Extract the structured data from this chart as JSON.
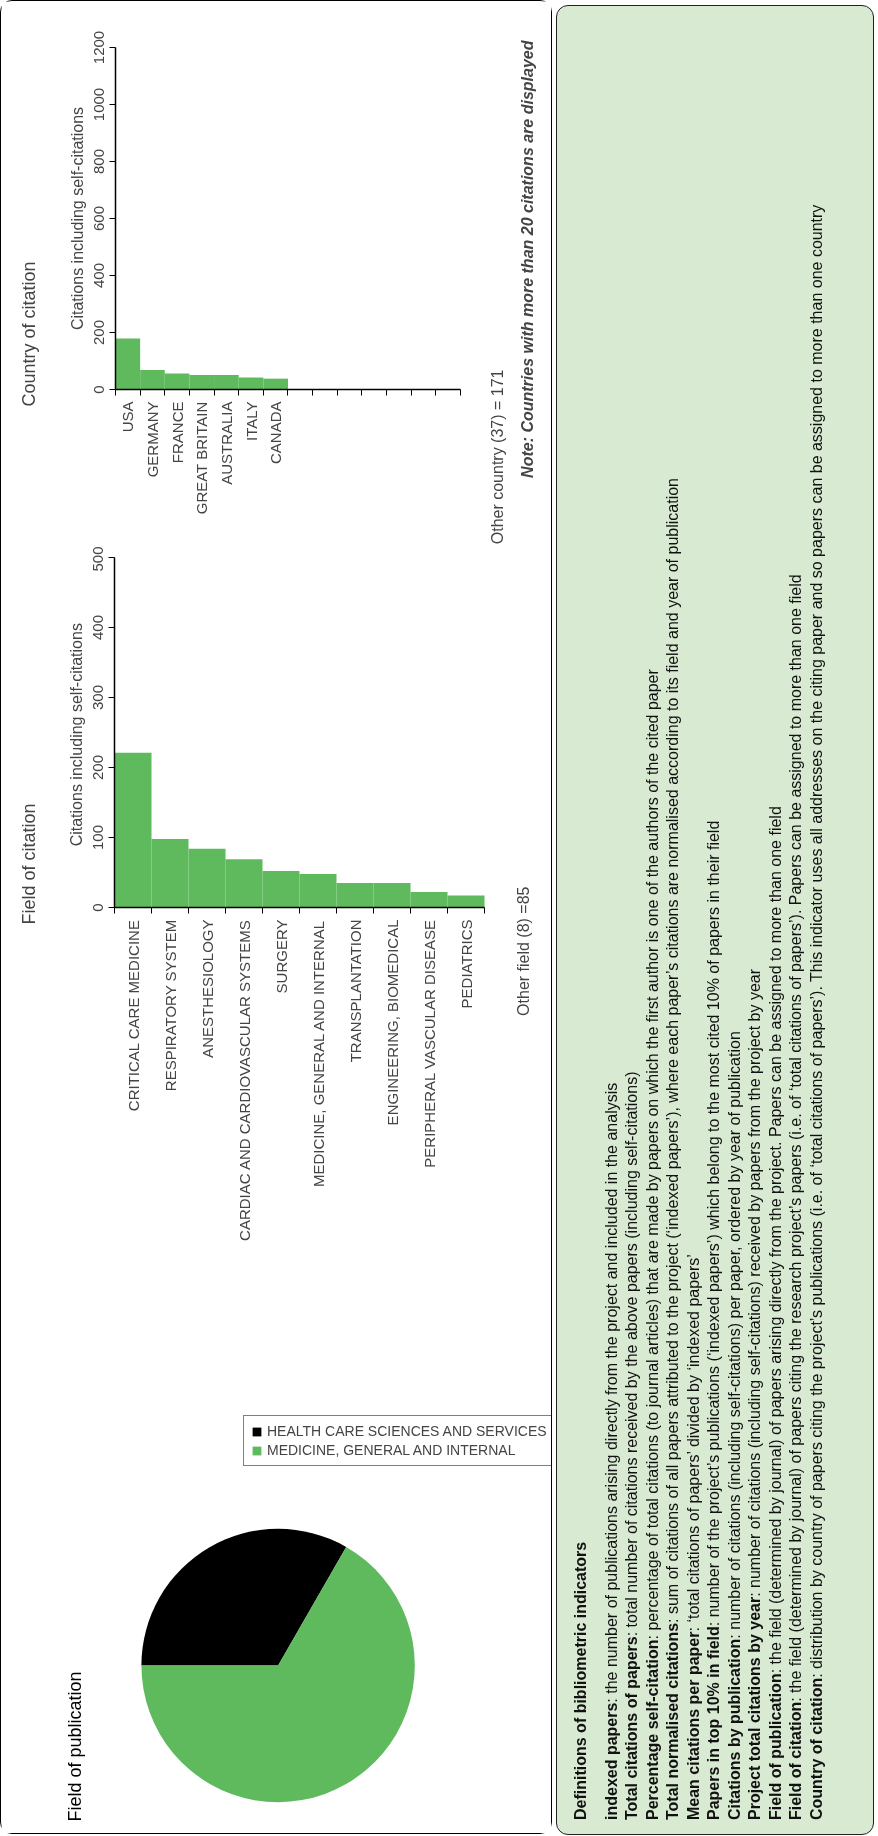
{
  "chart_data": [
    {
      "type": "bar",
      "title": "Country of citation",
      "ylabel": "Citations including self-citations",
      "categories": [
        "USA",
        "GERMANY",
        "FRANCE",
        "GREAT BRITAIN",
        "AUSTRALIA",
        "ITALY",
        "CANADA",
        null,
        null,
        null,
        null,
        null,
        null,
        null
      ],
      "values": [
        179,
        68,
        56,
        51,
        51,
        42,
        38,
        null,
        null,
        null,
        null,
        null,
        null,
        null
      ],
      "color": "#5fba5d",
      "ylim": [
        0,
        1200
      ],
      "yticks": [
        0,
        200,
        400,
        600,
        800,
        1000,
        1200
      ],
      "annotations": [
        "Other country (37) = 171",
        "Note: Countries with more than 20 citations are displayed"
      ]
    },
    {
      "type": "bar",
      "title": "Field of citation",
      "ylabel": "Citations  including self-citations",
      "categories": [
        "CRITICAL CARE MEDICINE",
        "RESPIRATORY SYSTEM",
        "ANESTHESIOLOGY",
        "CARDIAC AND CARDIOVASCULAR SYSTEMS",
        "SURGERY",
        "MEDICINE, GENERAL AND INTERNAL",
        "TRANSPLANTATION",
        "ENGINEERING, BIOMEDICAL",
        "PERIPHERAL VASCULAR DISEASE",
        "PEDIATRICS"
      ],
      "values": [
        221,
        98,
        84,
        69,
        52,
        48,
        35,
        35,
        22,
        17
      ],
      "color": "#5fba5d",
      "ylim": [
        0,
        500
      ],
      "yticks": [
        0,
        100,
        200,
        300,
        400,
        500
      ],
      "annotations": [
        "Other field (8) =85"
      ]
    },
    {
      "type": "pie",
      "title": "Field of publication",
      "categories": [
        "HEALTH CARE SCIENCES AND SERVICES",
        "MEDICINE, GENERAL AND INTERNAL"
      ],
      "values": [
        33.3,
        66.7
      ],
      "colors": [
        "#000000",
        "#5fba5d"
      ],
      "legend": "top"
    },
    {
      "type": "other",
      "title": "Definitions of bibliometric indicators",
      "annotations": [
        "indexed papers: the number of publications arising directly from the project and included in the analysis",
        "Total citations of papers: total number of citations received by the above papers (including self-citations)",
        "Percentage self-citation: percentage of total citations (to journal articles) that are made by papers on which the first author is one of the authors of the cited paper",
        "Total normalised citations: sum of citations of all papers attributed to the project (‘indexed papers’), where each paper’s citations are normalised according to its field and year of publication",
        "Mean citations per paper: ‘total citations of papers’ divided by ‘indexed papers’",
        "Papers in top 10% in field: number of the project’s publications (‘indexed papers’) which belong to the most cited 10% of papers in their field",
        "Citations by publication: number of citations (including self-citations) per paper, ordered by year of publication",
        "Project total citations by year: number of citations (including self-citations) received by papers from the project by year",
        "Field of publication: the field (determined by journal) of papers arising directly from the project. Papers can be assigned to more than one field",
        "Field of citation: the field (determined by journal) of papers citing the research project’s papers (i.e. of ‘total citations of papers’). Papers can be assigned to more than one field",
        "Country of citation: distribution by country of papers citing the project’s publications (i.e. of ‘total citations of papers’). This indicator uses all addresses on the citing paper and so papers can be assigned to more than one country"
      ]
    }
  ]
}
